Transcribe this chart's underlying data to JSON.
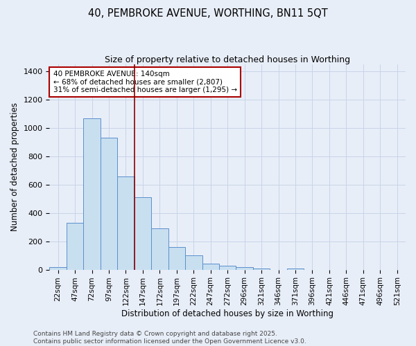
{
  "title_line1": "40, PEMBROKE AVENUE, WORTHING, BN11 5QT",
  "title_line2": "Size of property relative to detached houses in Worthing",
  "xlabel": "Distribution of detached houses by size in Worthing",
  "ylabel": "Number of detached properties",
  "categories": [
    "22sqm",
    "47sqm",
    "72sqm",
    "97sqm",
    "122sqm",
    "147sqm",
    "172sqm",
    "197sqm",
    "222sqm",
    "247sqm",
    "272sqm",
    "296sqm",
    "321sqm",
    "346sqm",
    "371sqm",
    "396sqm",
    "421sqm",
    "446sqm",
    "471sqm",
    "496sqm",
    "521sqm"
  ],
  "values": [
    20,
    330,
    1070,
    930,
    660,
    510,
    290,
    160,
    100,
    40,
    25,
    20,
    10,
    0,
    8,
    0,
    0,
    0,
    0,
    0,
    0
  ],
  "bar_color": "#c8dff0",
  "bar_edge_color": "#5b8fcc",
  "grid_color": "#c8d4e8",
  "background_color": "#e8eef8",
  "vline_color": "#8b0000",
  "vline_x_index": 4.5,
  "annotation_text": "40 PEMBROKE AVENUE: 140sqm\n← 68% of detached houses are smaller (2,807)\n31% of semi-detached houses are larger (1,295) →",
  "annotation_box_facecolor": "#ffffff",
  "annotation_box_edgecolor": "#aa0000",
  "ylim": [
    0,
    1450
  ],
  "yticks": [
    0,
    200,
    400,
    600,
    800,
    1000,
    1200,
    1400
  ],
  "footer_line1": "Contains HM Land Registry data © Crown copyright and database right 2025.",
  "footer_line2": "Contains public sector information licensed under the Open Government Licence v3.0."
}
